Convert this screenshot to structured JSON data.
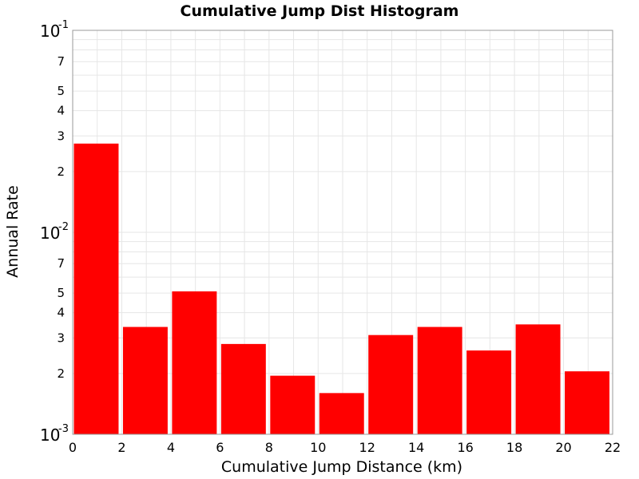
{
  "chart_data": {
    "type": "bar",
    "title": "Cumulative Jump Dist Histogram",
    "xlabel": "Cumulative Jump Distance (km)",
    "ylabel": "Annual Rate",
    "xlim": [
      0,
      22
    ],
    "ylim": [
      0.001,
      0.1
    ],
    "yscale": "log",
    "grid": true,
    "bar_color": "#ff0000",
    "x_ticks": [
      0,
      2,
      4,
      6,
      8,
      10,
      12,
      14,
      16,
      18,
      20,
      22
    ],
    "y_major_ticks": [
      {
        "value": 0.1,
        "base": "10",
        "exp": "-1"
      },
      {
        "value": 0.01,
        "base": "10",
        "exp": "-2"
      },
      {
        "value": 0.001,
        "base": "10",
        "exp": "-3"
      }
    ],
    "y_minor_tick_labels": [
      {
        "value": 0.07,
        "label": "7"
      },
      {
        "value": 0.05,
        "label": "5"
      },
      {
        "value": 0.04,
        "label": "4"
      },
      {
        "value": 0.03,
        "label": "3"
      },
      {
        "value": 0.02,
        "label": "2"
      },
      {
        "value": 0.007,
        "label": "7"
      },
      {
        "value": 0.005,
        "label": "5"
      },
      {
        "value": 0.004,
        "label": "4"
      },
      {
        "value": 0.003,
        "label": "3"
      },
      {
        "value": 0.002,
        "label": "2"
      }
    ],
    "bins": [
      {
        "x0": 0,
        "x1": 2,
        "value": 0.0275
      },
      {
        "x0": 2,
        "x1": 4,
        "value": 0.0034
      },
      {
        "x0": 4,
        "x1": 6,
        "value": 0.0051
      },
      {
        "x0": 6,
        "x1": 8,
        "value": 0.0028
      },
      {
        "x0": 8,
        "x1": 10,
        "value": 0.00195
      },
      {
        "x0": 10,
        "x1": 12,
        "value": 0.0016
      },
      {
        "x0": 12,
        "x1": 14,
        "value": 0.0031
      },
      {
        "x0": 14,
        "x1": 16,
        "value": 0.0034
      },
      {
        "x0": 16,
        "x1": 18,
        "value": 0.0026
      },
      {
        "x0": 18,
        "x1": 20,
        "value": 0.0035
      },
      {
        "x0": 20,
        "x1": 22,
        "value": 0.00205
      }
    ]
  }
}
